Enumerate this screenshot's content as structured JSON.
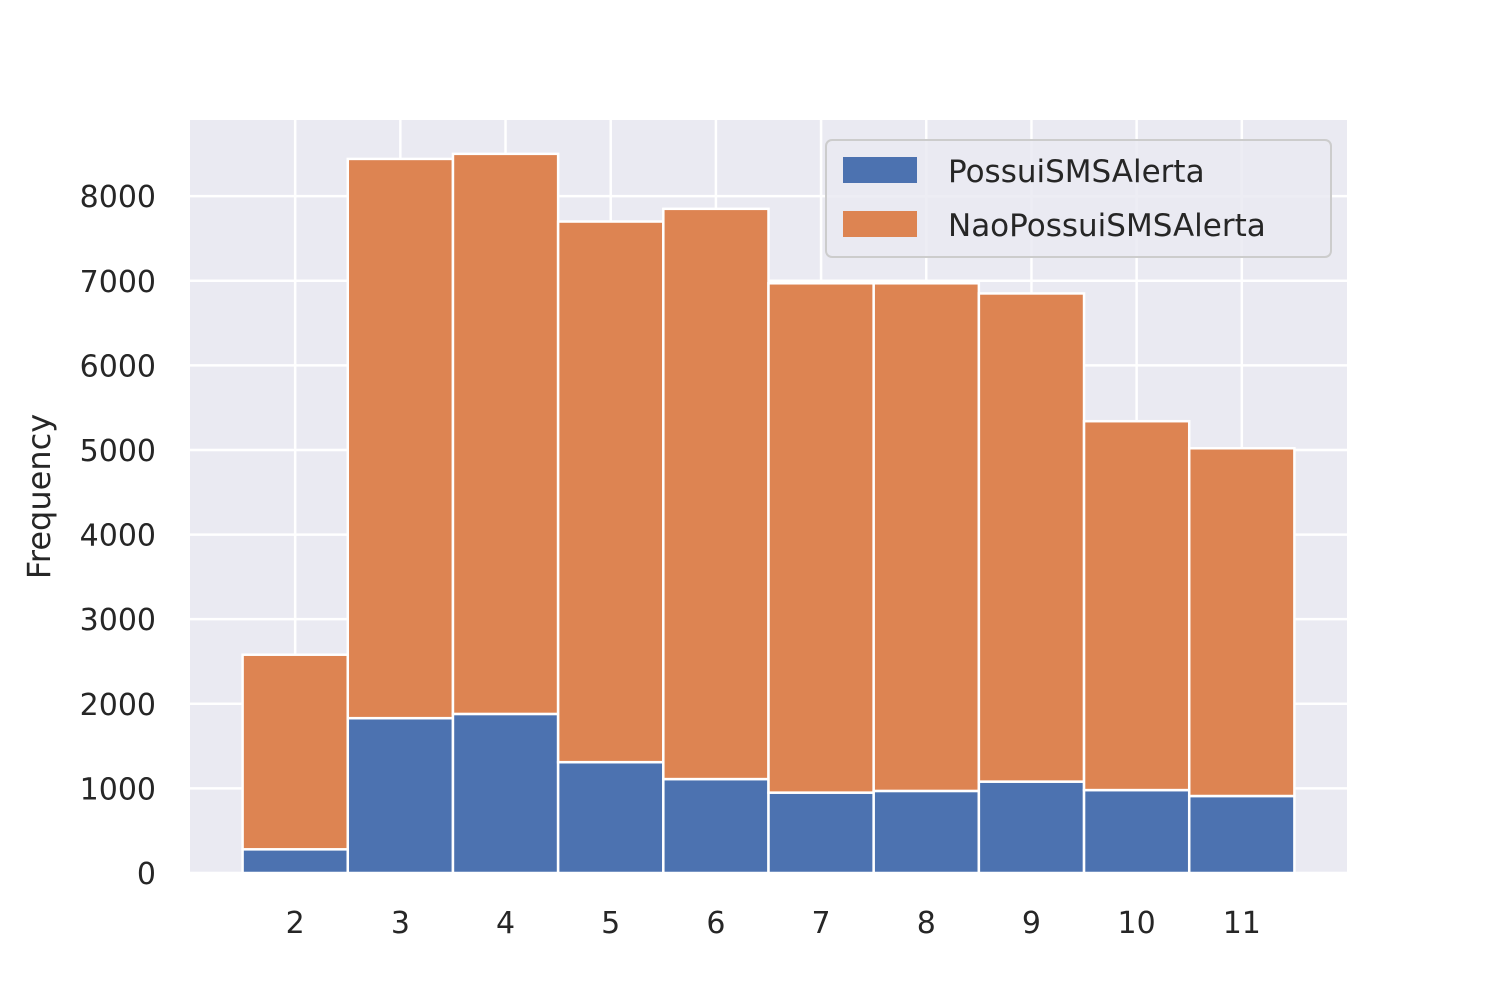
{
  "chart_data": {
    "type": "bar",
    "stacked": true,
    "categories": [
      "2",
      "3",
      "4",
      "5",
      "6",
      "7",
      "8",
      "9",
      "10",
      "11"
    ],
    "series": [
      {
        "name": "PossuiSMSAlerta",
        "color": "#4c72b0",
        "values": [
          280,
          1830,
          1880,
          1310,
          1110,
          950,
          970,
          1080,
          980,
          910
        ]
      },
      {
        "name": "NaoPossuiSMSAlerta",
        "color": "#dd8452",
        "values": [
          2300,
          6610,
          6620,
          6390,
          6740,
          6020,
          6000,
          5770,
          4360,
          4110
        ]
      }
    ],
    "title": "",
    "xlabel": "",
    "ylabel": "Frequency",
    "ylim": [
      0,
      8900
    ],
    "xlim": [
      1.0,
      12.0
    ],
    "xticks": [
      2,
      3,
      4,
      5,
      6,
      7,
      8,
      9,
      10,
      11
    ],
    "yticks": [
      0,
      1000,
      2000,
      3000,
      4000,
      5000,
      6000,
      7000,
      8000
    ],
    "ytick_labels": [
      "0",
      "1000",
      "2000",
      "3000",
      "4000",
      "5000",
      "6000",
      "7000",
      "8000"
    ],
    "grid": true,
    "legend": "top-right",
    "plot_background": "#eaeaf2",
    "grid_color": "#ffffff"
  }
}
